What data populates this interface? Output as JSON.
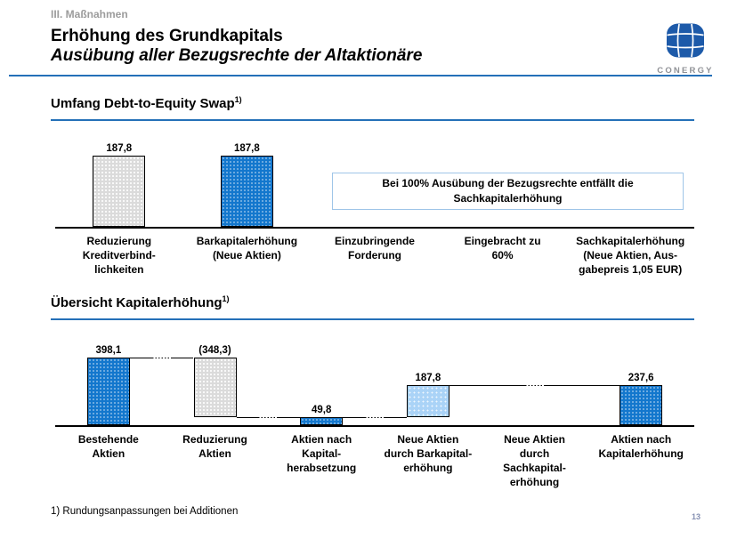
{
  "header": {
    "eyebrow": "III. Maßnahmen",
    "title": "Erhöhung des Grundkapitals",
    "subtitle": "Ausübung aller Bezugsrechte der Altaktionäre",
    "logo_brand": "CONERGY",
    "accent_color": "#2470b8",
    "logo_blue": "#1d5aa9"
  },
  "sections": [
    {
      "heading": "Umfang Debt-to-Equity Swap",
      "footnote_marker": "1)"
    },
    {
      "heading": "Übersicht Kapitalerhöhung",
      "footnote_marker": "1)"
    }
  ],
  "note_box": {
    "line1": "Bei 100% Ausübung der Bezugsrechte entfällt die",
    "line2": "Sachkapitalerhöhung"
  },
  "chart_data": [
    {
      "type": "bar",
      "title": "Umfang Debt-to-Equity Swap",
      "categories": [
        "Reduzierung Kreditverbindlichkeiten",
        "Barkapitalerhöhung (Neue Aktien)",
        "Einzubringende Forderung",
        "Eingebracht zu 60%",
        "Sachkapitalerhöhung (Neue Aktien, Ausgabepreis 1,05 EUR)"
      ],
      "category_labels_multiline": [
        "Reduzierung\nKreditverbind-\nlichkeiten",
        "Barkapitalerhöhung\n(Neue Aktien)",
        "Einzubringende\nForderung",
        "Eingebracht zu\n60%",
        "Sachkapitalerhöhung\n(Neue Aktien, Aus-\ngabepreis 1,05 EUR)"
      ],
      "values": [
        187.8,
        187.8,
        null,
        null,
        null
      ],
      "value_labels": [
        "187,8",
        "187,8",
        "",
        "",
        ""
      ],
      "bar_styles": [
        "gray-dotted",
        "blue-dotted",
        null,
        null,
        null
      ],
      "ylim": [
        0,
        200
      ],
      "grid": false,
      "annotation": "Bei 100% Ausübung der Bezugsrechte entfällt die Sachkapitalerhöhung"
    },
    {
      "type": "waterfall",
      "title": "Übersicht Kapitalerhöhung",
      "categories": [
        "Bestehende Aktien",
        "Reduzierung Aktien",
        "Aktien nach Kapitalherabsetzung",
        "Neue Aktien durch Barkapitalerhöhung",
        "Neue Aktien durch Sachkapitalerhöhung",
        "Aktien nach Kapitalerhöhung"
      ],
      "category_labels_multiline": [
        "Bestehende\nAktien",
        "Reduzierung\nAktien",
        "Aktien nach\nKapital-\nherabsetzung",
        "Neue Aktien\ndurch Barkapital-\nerhöhung",
        "Neue Aktien\ndurch\nSachkapital-\nerhöhung",
        "Aktien nach\nKapitalerhöhung"
      ],
      "values": [
        398.1,
        -348.3,
        49.8,
        187.8,
        null,
        237.6
      ],
      "value_labels": [
        "398,1",
        "(348,3)",
        "49,8",
        "187,8",
        "",
        "237,6"
      ],
      "segments": [
        {
          "from": 0,
          "to": 398.1
        },
        {
          "from": 398.1,
          "to": 49.8
        },
        {
          "from": 0,
          "to": 49.8
        },
        {
          "from": 49.8,
          "to": 237.6
        },
        null,
        {
          "from": 0,
          "to": 237.6
        }
      ],
      "bar_styles": [
        "blue-dotted",
        "gray-dotted",
        "blue-dotted",
        "lightblue-dotted",
        null,
        "blue-dotted"
      ],
      "connectors": [
        {
          "level": 398.1,
          "from_col": 0,
          "to_col": 1
        },
        {
          "level": 49.8,
          "from_col": 1,
          "to_col": 2
        },
        {
          "level": 49.8,
          "from_col": 2,
          "to_col": 3
        },
        {
          "level": 237.6,
          "from_col": 3,
          "to_col": 5
        }
      ],
      "ylim": [
        0,
        420
      ],
      "grid": false
    }
  ],
  "footer": {
    "footnote": "1) Rundungsanpassungen bei Additionen",
    "page_number": "13"
  }
}
